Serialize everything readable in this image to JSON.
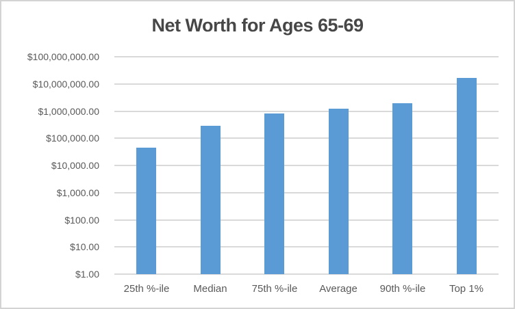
{
  "colors": {
    "bar": "#5B9BD5",
    "gridline": "#D9D9D9",
    "axis_text": "#595959",
    "title_text": "#474747",
    "border": "#D3D3D3",
    "background": "#FFFFFF"
  },
  "chart_data": {
    "type": "bar",
    "title": "Net Worth for Ages 65-69",
    "xlabel": "",
    "ylabel": "",
    "y_scale": "log10",
    "ylim": [
      1,
      100000000
    ],
    "grid": true,
    "legend": false,
    "categories": [
      "25th %-ile",
      "Median",
      "75th %-ile",
      "Average",
      "90th %-ile",
      "Top 1%"
    ],
    "values": [
      44000,
      280000,
      800000,
      1250000,
      2000000,
      17000000
    ],
    "series_color": "#5B9BD5",
    "ytick_values": [
      1,
      10,
      100,
      1000,
      10000,
      100000,
      1000000,
      10000000,
      100000000
    ],
    "ytick_labels": [
      "$1.00",
      "$10.00",
      "$100.00",
      "$1,000.00",
      "$10,000.00",
      "$100,000.00",
      "$1,000,000.00",
      "$10,000,000.00",
      "$100,000,000.00"
    ]
  }
}
